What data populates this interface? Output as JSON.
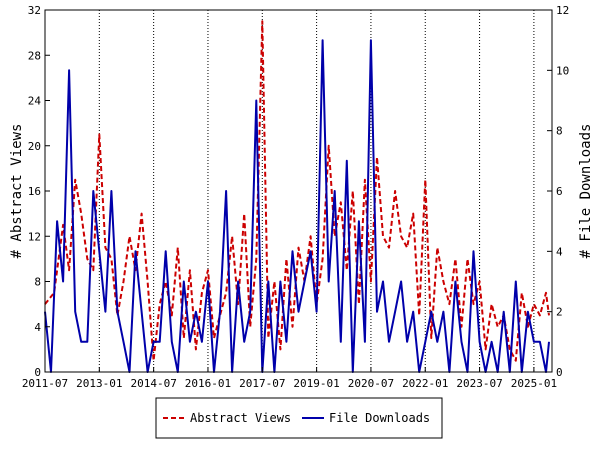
{
  "chart_data": {
    "type": "line",
    "title": "",
    "xlabel": "",
    "ylabel_left": "# Abstract Views",
    "ylabel_right": "# File Downloads",
    "xlim": [
      "2011-07",
      "2025-07"
    ],
    "ylim_left": [
      0,
      32
    ],
    "ylim_right": [
      0,
      12
    ],
    "x_ticks": [
      "2011-07",
      "2013-01",
      "2014-07",
      "2016-01",
      "2017-07",
      "2019-01",
      "2020-07",
      "2022-01",
      "2023-07",
      "2025-01"
    ],
    "y_ticks_left": [
      0,
      4,
      8,
      12,
      16,
      20,
      24,
      28,
      32
    ],
    "y_ticks_right": [
      0,
      2,
      4,
      6,
      8,
      10,
      12
    ],
    "legend_position": "bottom-center",
    "series": [
      {
        "name": "Abstract Views",
        "axis": "left",
        "color": "#cc0000",
        "style": "dashed",
        "x": [
          "2011-07",
          "2011-10",
          "2012-01",
          "2012-03",
          "2012-05",
          "2012-07",
          "2012-09",
          "2012-11",
          "2013-01",
          "2013-03",
          "2013-05",
          "2013-07",
          "2013-09",
          "2013-11",
          "2014-01",
          "2014-03",
          "2014-05",
          "2014-07",
          "2014-09",
          "2014-11",
          "2015-01",
          "2015-03",
          "2015-05",
          "2015-07",
          "2015-09",
          "2015-11",
          "2016-01",
          "2016-03",
          "2016-05",
          "2016-07",
          "2016-09",
          "2016-11",
          "2017-01",
          "2017-03",
          "2017-05",
          "2017-07",
          "2017-09",
          "2017-11",
          "2018-01",
          "2018-03",
          "2018-05",
          "2018-07",
          "2018-09",
          "2018-11",
          "2019-01",
          "2019-03",
          "2019-05",
          "2019-07",
          "2019-09",
          "2019-11",
          "2020-01",
          "2020-03",
          "2020-05",
          "2020-07",
          "2020-09",
          "2020-11",
          "2021-01",
          "2021-03",
          "2021-05",
          "2021-07",
          "2021-09",
          "2021-11",
          "2022-01",
          "2022-03",
          "2022-05",
          "2022-07",
          "2022-09",
          "2022-11",
          "2023-01",
          "2023-03",
          "2023-05",
          "2023-07",
          "2023-09",
          "2023-11",
          "2024-01",
          "2024-03",
          "2024-05",
          "2024-07",
          "2024-09",
          "2024-11",
          "2025-01",
          "2025-03",
          "2025-05",
          "2025-06"
        ],
        "values": [
          6,
          7,
          13,
          9,
          17,
          14,
          10,
          9,
          21,
          11,
          10,
          5,
          8,
          12,
          9,
          14,
          8,
          1,
          6,
          8,
          5,
          11,
          3,
          9,
          2,
          7,
          9,
          3,
          5,
          7,
          12,
          6,
          14,
          4,
          10,
          31,
          3,
          8,
          2,
          10,
          4,
          11,
          8,
          12,
          6,
          10,
          20,
          12,
          15,
          9,
          16,
          6,
          17,
          8,
          19,
          12,
          11,
          16,
          12,
          11,
          14,
          5,
          17,
          3,
          11,
          8,
          6,
          10,
          4,
          10,
          6,
          8,
          2,
          6,
          4,
          5,
          2,
          1,
          7,
          4,
          6,
          5,
          7,
          5
        ]
      },
      {
        "name": "File Downloads",
        "axis": "right",
        "color": "#0000aa",
        "style": "solid",
        "x": [
          "2011-07",
          "2011-09",
          "2011-11",
          "2012-01",
          "2012-03",
          "2012-05",
          "2012-07",
          "2012-09",
          "2012-11",
          "2013-01",
          "2013-03",
          "2013-05",
          "2013-07",
          "2013-09",
          "2013-11",
          "2014-01",
          "2014-03",
          "2014-05",
          "2014-07",
          "2014-09",
          "2014-11",
          "2015-01",
          "2015-03",
          "2015-05",
          "2015-07",
          "2015-09",
          "2015-11",
          "2016-01",
          "2016-03",
          "2016-05",
          "2016-07",
          "2016-09",
          "2016-11",
          "2017-01",
          "2017-03",
          "2017-05",
          "2017-07",
          "2017-09",
          "2017-11",
          "2018-01",
          "2018-03",
          "2018-05",
          "2018-07",
          "2018-09",
          "2018-11",
          "2019-01",
          "2019-03",
          "2019-05",
          "2019-07",
          "2019-09",
          "2019-11",
          "2020-01",
          "2020-03",
          "2020-05",
          "2020-07",
          "2020-09",
          "2020-11",
          "2021-01",
          "2021-03",
          "2021-05",
          "2021-07",
          "2021-09",
          "2021-11",
          "2022-01",
          "2022-03",
          "2022-05",
          "2022-07",
          "2022-09",
          "2022-11",
          "2023-01",
          "2023-03",
          "2023-05",
          "2023-07",
          "2023-09",
          "2023-11",
          "2024-01",
          "2024-03",
          "2024-05",
          "2024-07",
          "2024-09",
          "2024-11",
          "2025-01",
          "2025-03",
          "2025-05",
          "2025-06"
        ],
        "values": [
          2,
          0,
          5,
          3,
          10,
          2,
          1,
          1,
          6,
          4,
          2,
          6,
          2,
          1,
          0,
          4,
          2,
          0,
          1,
          1,
          4,
          1,
          0,
          3,
          1,
          2,
          1,
          3,
          0,
          2,
          6,
          0,
          3,
          1,
          2,
          9,
          0,
          3,
          0,
          3,
          1,
          4,
          2,
          3,
          4,
          2,
          11,
          3,
          6,
          1,
          7,
          0,
          5,
          1,
          11,
          2,
          3,
          1,
          2,
          3,
          1,
          2,
          0,
          1,
          2,
          1,
          2,
          0,
          3,
          1,
          0,
          4,
          1,
          0,
          1,
          0,
          2,
          0,
          3,
          0,
          2,
          1,
          1,
          0,
          1
        ]
      }
    ]
  }
}
